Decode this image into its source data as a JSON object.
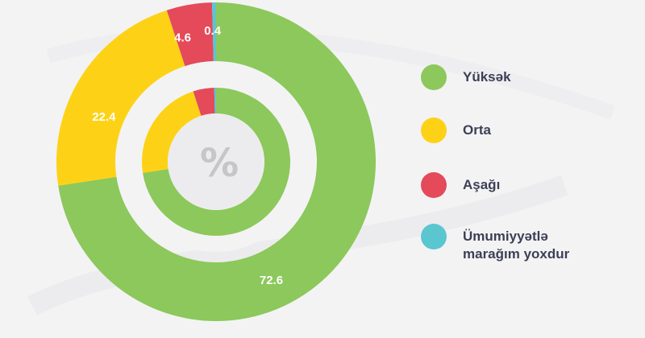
{
  "chart_data": {
    "type": "pie",
    "variant": "nested-donut",
    "center_symbol": "%",
    "slices": [
      {
        "label": "Yüksək",
        "value": 72.6,
        "display": "72.6",
        "color": "#8cc85b"
      },
      {
        "label": "Orta",
        "value": 22.4,
        "display": "22.4",
        "color": "#fdd216"
      },
      {
        "label": "Aşağı",
        "value": 4.6,
        "display": "4.6",
        "color": "#e44a5a"
      },
      {
        "label": "Ümumiyyətlə\nmarağım yoxdur",
        "value": 0.4,
        "display": "0.4",
        "color": "#5ac6d0"
      }
    ],
    "legend_position": "right"
  }
}
